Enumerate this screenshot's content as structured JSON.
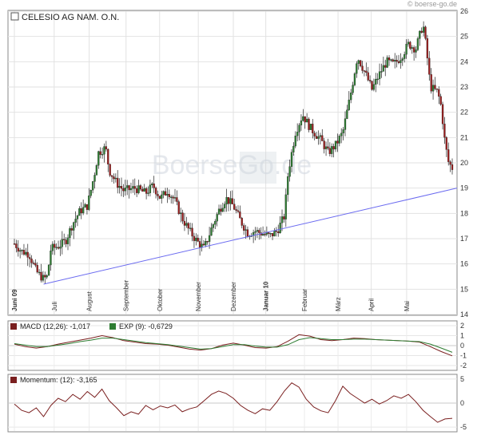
{
  "header": {
    "source": "© boerse-go.de"
  },
  "chart_data": [
    {
      "type": "candlestick",
      "title": "CELESIO AG NAM. O.N.",
      "watermark": "BoerseGo.de",
      "ylim": [
        14,
        26
      ],
      "yticks": [
        14,
        15,
        16,
        17,
        18,
        19,
        20,
        21,
        22,
        23,
        24,
        25,
        26
      ],
      "grid": true,
      "months": [
        {
          "label": "Juni 09",
          "pos": 0.0,
          "bold": true
        },
        {
          "label": "Juli",
          "pos": 0.109
        },
        {
          "label": "August",
          "pos": 0.205
        },
        {
          "label": "September",
          "pos": 0.306
        },
        {
          "label": "Oktober",
          "pos": 0.398
        },
        {
          "label": "November",
          "pos": 0.504
        },
        {
          "label": "Dezember",
          "pos": 0.6
        },
        {
          "label": "Januar 10",
          "pos": 0.689,
          "bold": true
        },
        {
          "label": "Februar",
          "pos": 0.795
        },
        {
          "label": "März",
          "pos": 0.887
        },
        {
          "label": "April",
          "pos": 0.978
        },
        {
          "label": "Mai",
          "pos": 1.075
        }
      ],
      "trendline": {
        "start": [
          0.08,
          15.2
        ],
        "end": [
          1.2,
          19.0
        ]
      },
      "price_path": [
        [
          0.0,
          16.8
        ],
        [
          0.02,
          16.5
        ],
        [
          0.04,
          16.4
        ],
        [
          0.06,
          15.7
        ],
        [
          0.08,
          15.4
        ],
        [
          0.09,
          15.5
        ],
        [
          0.1,
          16.6
        ],
        [
          0.12,
          16.7
        ],
        [
          0.14,
          16.9
        ],
        [
          0.16,
          17.6
        ],
        [
          0.18,
          18.1
        ],
        [
          0.2,
          18.3
        ],
        [
          0.22,
          19.6
        ],
        [
          0.23,
          20.4
        ],
        [
          0.25,
          20.6
        ],
        [
          0.26,
          19.7
        ],
        [
          0.28,
          19.2
        ],
        [
          0.3,
          18.9
        ],
        [
          0.33,
          19.0
        ],
        [
          0.36,
          18.8
        ],
        [
          0.38,
          19.1
        ],
        [
          0.4,
          18.6
        ],
        [
          0.42,
          18.9
        ],
        [
          0.44,
          18.5
        ],
        [
          0.46,
          17.8
        ],
        [
          0.48,
          17.3
        ],
        [
          0.5,
          16.9
        ],
        [
          0.52,
          16.6
        ],
        [
          0.54,
          17.4
        ],
        [
          0.56,
          18.1
        ],
        [
          0.58,
          18.6
        ],
        [
          0.6,
          18.3
        ],
        [
          0.62,
          17.7
        ],
        [
          0.64,
          17.2
        ],
        [
          0.66,
          17.3
        ],
        [
          0.68,
          17.2
        ],
        [
          0.7,
          17.1
        ],
        [
          0.72,
          17.3
        ],
        [
          0.74,
          17.9
        ],
        [
          0.75,
          19.6
        ],
        [
          0.77,
          21.2
        ],
        [
          0.79,
          21.9
        ],
        [
          0.81,
          21.4
        ],
        [
          0.84,
          20.9
        ],
        [
          0.86,
          20.4
        ],
        [
          0.88,
          20.7
        ],
        [
          0.9,
          21.2
        ],
        [
          0.92,
          22.6
        ],
        [
          0.94,
          24.2
        ],
        [
          0.96,
          23.6
        ],
        [
          0.98,
          22.9
        ],
        [
          1.0,
          23.5
        ],
        [
          1.02,
          24.0
        ],
        [
          1.04,
          23.9
        ],
        [
          1.06,
          24.2
        ],
        [
          1.08,
          24.7
        ],
        [
          1.1,
          24.5
        ],
        [
          1.12,
          25.5
        ],
        [
          1.13,
          24.4
        ],
        [
          1.14,
          23.0
        ],
        [
          1.16,
          22.8
        ],
        [
          1.17,
          22.2
        ],
        [
          1.18,
          20.8
        ],
        [
          1.19,
          20.0
        ],
        [
          1.2,
          19.8
        ]
      ]
    },
    {
      "type": "line",
      "title": "MACD (12,26): -1,017",
      "legend": [
        {
          "label": "MACD (12,26): -1,017",
          "color": "#7a1f1f"
        },
        {
          "label": "EXP (9): -0,6729",
          "color": "#2e7d32"
        }
      ],
      "ylim": [
        -2.4,
        2.4
      ],
      "yticks": [
        -2,
        -1,
        0,
        1,
        2
      ],
      "series": [
        {
          "name": "MACD (12,26): -1,017",
          "color": "#7a1f1f",
          "points": [
            [
              0.0,
              0.15
            ],
            [
              0.03,
              -0.1
            ],
            [
              0.06,
              -0.25
            ],
            [
              0.09,
              -0.1
            ],
            [
              0.12,
              0.15
            ],
            [
              0.15,
              0.35
            ],
            [
              0.18,
              0.55
            ],
            [
              0.21,
              0.75
            ],
            [
              0.24,
              1.0
            ],
            [
              0.27,
              0.8
            ],
            [
              0.3,
              0.5
            ],
            [
              0.33,
              0.35
            ],
            [
              0.36,
              0.2
            ],
            [
              0.39,
              0.15
            ],
            [
              0.42,
              0.05
            ],
            [
              0.45,
              -0.15
            ],
            [
              0.48,
              -0.35
            ],
            [
              0.51,
              -0.45
            ],
            [
              0.54,
              -0.3
            ],
            [
              0.57,
              0.05
            ],
            [
              0.6,
              0.25
            ],
            [
              0.63,
              0.05
            ],
            [
              0.66,
              -0.2
            ],
            [
              0.69,
              -0.25
            ],
            [
              0.72,
              -0.1
            ],
            [
              0.75,
              0.45
            ],
            [
              0.78,
              1.1
            ],
            [
              0.81,
              0.95
            ],
            [
              0.84,
              0.6
            ],
            [
              0.87,
              0.5
            ],
            [
              0.9,
              0.6
            ],
            [
              0.93,
              0.75
            ],
            [
              0.96,
              0.7
            ],
            [
              0.99,
              0.6
            ],
            [
              1.02,
              0.55
            ],
            [
              1.05,
              0.5
            ],
            [
              1.08,
              0.45
            ],
            [
              1.11,
              0.35
            ],
            [
              1.14,
              -0.1
            ],
            [
              1.17,
              -0.6
            ],
            [
              1.2,
              -1.02
            ]
          ]
        },
        {
          "name": "EXP (9): -0,6729",
          "color": "#2e7d32",
          "points": [
            [
              0.0,
              0.2
            ],
            [
              0.03,
              0.05
            ],
            [
              0.06,
              -0.1
            ],
            [
              0.09,
              -0.1
            ],
            [
              0.12,
              0.05
            ],
            [
              0.15,
              0.2
            ],
            [
              0.18,
              0.4
            ],
            [
              0.21,
              0.55
            ],
            [
              0.24,
              0.75
            ],
            [
              0.27,
              0.75
            ],
            [
              0.3,
              0.6
            ],
            [
              0.33,
              0.45
            ],
            [
              0.36,
              0.3
            ],
            [
              0.39,
              0.2
            ],
            [
              0.42,
              0.1
            ],
            [
              0.45,
              -0.05
            ],
            [
              0.48,
              -0.2
            ],
            [
              0.51,
              -0.35
            ],
            [
              0.54,
              -0.3
            ],
            [
              0.57,
              -0.1
            ],
            [
              0.6,
              0.1
            ],
            [
              0.63,
              0.1
            ],
            [
              0.66,
              -0.05
            ],
            [
              0.69,
              -0.15
            ],
            [
              0.72,
              -0.15
            ],
            [
              0.75,
              0.1
            ],
            [
              0.78,
              0.6
            ],
            [
              0.81,
              0.8
            ],
            [
              0.84,
              0.7
            ],
            [
              0.87,
              0.6
            ],
            [
              0.9,
              0.6
            ],
            [
              0.93,
              0.65
            ],
            [
              0.96,
              0.65
            ],
            [
              0.99,
              0.6
            ],
            [
              1.02,
              0.55
            ],
            [
              1.05,
              0.5
            ],
            [
              1.08,
              0.45
            ],
            [
              1.11,
              0.4
            ],
            [
              1.14,
              0.15
            ],
            [
              1.17,
              -0.25
            ],
            [
              1.2,
              -0.67
            ]
          ]
        }
      ]
    },
    {
      "type": "line",
      "title": "Momentum: (12): -3,165",
      "legend": [
        {
          "label": "Momentum: (12): -3,165",
          "color": "#7a1f1f"
        }
      ],
      "ylim": [
        -5.8,
        5.8
      ],
      "yticks": [
        -5,
        0,
        5
      ],
      "series": [
        {
          "name": "Momentum: (12): -3,165",
          "color": "#7a1f1f",
          "points": [
            [
              0.0,
              -0.2
            ],
            [
              0.02,
              -1.5
            ],
            [
              0.04,
              -2.0
            ],
            [
              0.06,
              -1.0
            ],
            [
              0.08,
              -2.8
            ],
            [
              0.1,
              -0.5
            ],
            [
              0.12,
              1.0
            ],
            [
              0.14,
              0.3
            ],
            [
              0.16,
              1.8
            ],
            [
              0.18,
              0.8
            ],
            [
              0.2,
              2.4
            ],
            [
              0.22,
              1.2
            ],
            [
              0.24,
              2.9
            ],
            [
              0.26,
              0.5
            ],
            [
              0.28,
              -1.0
            ],
            [
              0.3,
              -2.6
            ],
            [
              0.32,
              -1.8
            ],
            [
              0.34,
              -2.3
            ],
            [
              0.36,
              -0.5
            ],
            [
              0.38,
              -1.4
            ],
            [
              0.4,
              -0.6
            ],
            [
              0.42,
              -1.0
            ],
            [
              0.44,
              -0.4
            ],
            [
              0.46,
              -1.8
            ],
            [
              0.48,
              -1.2
            ],
            [
              0.5,
              -0.8
            ],
            [
              0.52,
              0.5
            ],
            [
              0.54,
              1.8
            ],
            [
              0.56,
              2.5
            ],
            [
              0.58,
              2.0
            ],
            [
              0.6,
              1.0
            ],
            [
              0.62,
              -0.5
            ],
            [
              0.64,
              -1.5
            ],
            [
              0.66,
              -2.2
            ],
            [
              0.68,
              -1.2
            ],
            [
              0.7,
              -1.5
            ],
            [
              0.72,
              0.3
            ],
            [
              0.74,
              2.5
            ],
            [
              0.76,
              4.2
            ],
            [
              0.78,
              3.3
            ],
            [
              0.8,
              0.8
            ],
            [
              0.82,
              -0.8
            ],
            [
              0.84,
              -1.6
            ],
            [
              0.86,
              -2.0
            ],
            [
              0.88,
              0.5
            ],
            [
              0.9,
              3.5
            ],
            [
              0.92,
              2.0
            ],
            [
              0.94,
              1.0
            ],
            [
              0.96,
              0.0
            ],
            [
              0.98,
              0.8
            ],
            [
              1.0,
              -0.2
            ],
            [
              1.02,
              0.5
            ],
            [
              1.04,
              1.5
            ],
            [
              1.06,
              1.0
            ],
            [
              1.08,
              1.8
            ],
            [
              1.1,
              0.3
            ],
            [
              1.12,
              -1.5
            ],
            [
              1.14,
              -2.8
            ],
            [
              1.16,
              -4.0
            ],
            [
              1.18,
              -3.3
            ],
            [
              1.2,
              -3.165
            ]
          ]
        }
      ]
    }
  ]
}
